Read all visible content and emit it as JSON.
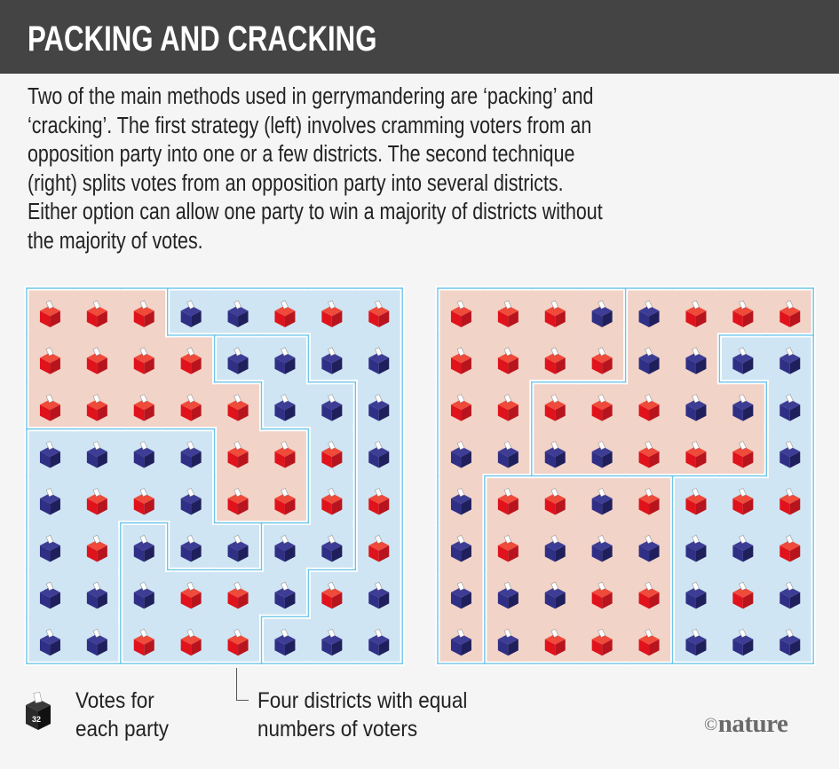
{
  "header": {
    "title": "PACKING AND CRACKING",
    "background": "#444444"
  },
  "intro": {
    "lines": [
      "Two of the main methods used in gerrymandering are ‘packing’ and",
      "‘cracking’. The first strategy (left) involves cramming voters from an",
      "opposition party into one or a few districts. The second technique",
      "(right) splits votes from an opposition party into several districts.",
      "Either option can allow one party to win a majority of districts without",
      "the majority of votes."
    ]
  },
  "colors": {
    "red_district": "#f2d3c8",
    "blue_district": "#cfe5f3",
    "border": "#6ec6ea",
    "border_gap": "#ffffff",
    "red_box": {
      "top": "#ef4a3a",
      "left": "#e0121b",
      "right": "#b8141e"
    },
    "blue_box": {
      "top": "#3d3d96",
      "left": "#2f2f86",
      "right": "#1f1f5c"
    },
    "page_background": "#f5f5f5"
  },
  "votes": [
    [
      "R",
      "R",
      "R",
      "B",
      "B",
      "R",
      "R",
      "R"
    ],
    [
      "R",
      "R",
      "R",
      "R",
      "B",
      "B",
      "B",
      "B"
    ],
    [
      "R",
      "R",
      "R",
      "R",
      "R",
      "B",
      "B",
      "B"
    ],
    [
      "B",
      "B",
      "B",
      "B",
      "R",
      "R",
      "R",
      "B"
    ],
    [
      "B",
      "R",
      "R",
      "B",
      "R",
      "R",
      "R",
      "R"
    ],
    [
      "B",
      "R",
      "B",
      "B",
      "B",
      "B",
      "B",
      "R"
    ],
    [
      "B",
      "B",
      "B",
      "R",
      "R",
      "B",
      "R",
      "B"
    ],
    [
      "B",
      "B",
      "R",
      "R",
      "R",
      "B",
      "B",
      "B"
    ]
  ],
  "maps": [
    {
      "name": "packing",
      "position": "left",
      "district_grid": [
        [
          1,
          1,
          1,
          2,
          2,
          2,
          2,
          2
        ],
        [
          1,
          1,
          1,
          1,
          4,
          4,
          2,
          2
        ],
        [
          1,
          1,
          1,
          1,
          1,
          4,
          4,
          2
        ],
        [
          3,
          3,
          3,
          3,
          1,
          1,
          4,
          2
        ],
        [
          3,
          3,
          3,
          3,
          1,
          1,
          4,
          2
        ],
        [
          3,
          3,
          4,
          3,
          3,
          4,
          4,
          2
        ],
        [
          3,
          3,
          4,
          4,
          4,
          4,
          2,
          2
        ],
        [
          3,
          3,
          4,
          4,
          4,
          2,
          2,
          2
        ]
      ],
      "district_winner": {
        "1": "R",
        "2": "B",
        "3": "B",
        "4": "B"
      }
    },
    {
      "name": "cracking",
      "position": "right",
      "district_grid": [
        [
          1,
          1,
          1,
          1,
          2,
          2,
          2,
          2
        ],
        [
          1,
          1,
          1,
          1,
          2,
          2,
          3,
          3
        ],
        [
          1,
          1,
          2,
          2,
          2,
          2,
          2,
          3
        ],
        [
          1,
          1,
          2,
          2,
          2,
          2,
          2,
          3
        ],
        [
          1,
          4,
          4,
          4,
          4,
          3,
          3,
          3
        ],
        [
          1,
          4,
          4,
          4,
          4,
          3,
          3,
          3
        ],
        [
          1,
          4,
          4,
          4,
          4,
          3,
          3,
          3
        ],
        [
          1,
          4,
          4,
          4,
          4,
          3,
          3,
          3
        ]
      ],
      "district_winner": {
        "1": "R",
        "2": "R",
        "3": "B",
        "4": "R"
      }
    }
  ],
  "legend": {
    "votes_icon_number": "32",
    "votes_label_line1": "Votes for",
    "votes_label_line2": "each party",
    "districts_label_line1": "Four districts with equal",
    "districts_label_line2": "numbers of voters"
  },
  "credit": {
    "symbol": "©",
    "text": "nature"
  }
}
